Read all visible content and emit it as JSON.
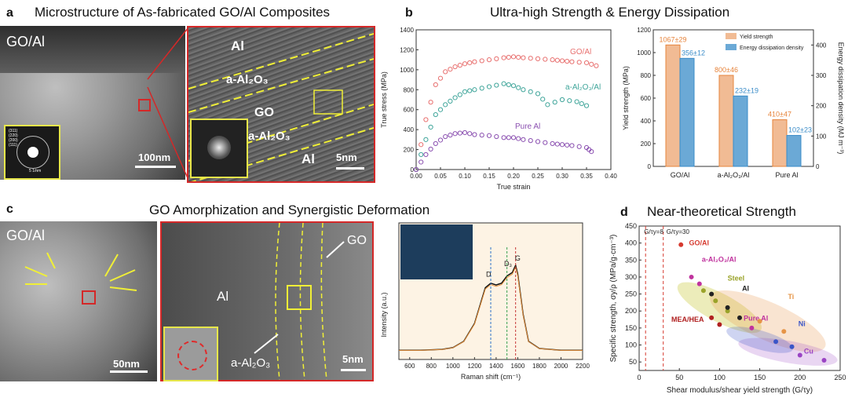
{
  "panels": {
    "a": {
      "letter": "a",
      "title": "Microstructure of As-fabricated GO/Al Composites",
      "left_label": "GO/Al",
      "scale_left": "100nm",
      "scale_right": "5nm",
      "diffraction_rings": [
        "(311)",
        "(220)",
        "(200)",
        "(111)"
      ],
      "diffraction_scale": "5 1/nm",
      "layers": [
        "Al",
        "a-Al₂O₃",
        "GO",
        "a-Al₂O₃",
        "Al"
      ]
    },
    "b": {
      "letter": "b",
      "title": "Ultra-high Strength & Energy Dissipation"
    },
    "c": {
      "letter": "c",
      "title": "GO Amorphization and Synergistic Deformation",
      "left_label": "GO/Al",
      "scale_left": "50nm",
      "scale_right": "5nm",
      "labels": {
        "al": "Al",
        "go": "GO",
        "alumina": "a-Al₂O₃"
      },
      "raman_peaks": {
        "d": "D",
        "d3": "D₃",
        "g": "G"
      }
    },
    "d": {
      "letter": "d",
      "title": "Near-theoretical Strength"
    }
  },
  "chart_data": [
    {
      "type": "scatter",
      "id": "stress-strain",
      "xlabel": "True strain",
      "ylabel": "True stress (MPa)",
      "xlim": [
        0,
        0.4
      ],
      "ylim": [
        0,
        1400
      ],
      "xticks": [
        "0.00",
        "0.05",
        "0.10",
        "0.15",
        "0.20",
        "0.25",
        "0.30",
        "0.35",
        "0.40"
      ],
      "yticks": [
        "0",
        "200",
        "400",
        "600",
        "800",
        "1000",
        "1200",
        "1400"
      ],
      "series": [
        {
          "name": "GO/Al",
          "color": "#e8706f",
          "x": [
            0,
            0.02,
            0.04,
            0.06,
            0.08,
            0.1,
            0.12,
            0.15,
            0.18,
            0.2,
            0.22,
            0.25,
            0.28,
            0.3,
            0.32,
            0.35,
            0.37
          ],
          "y": [
            0,
            500,
            850,
            980,
            1030,
            1060,
            1080,
            1100,
            1120,
            1130,
            1120,
            1110,
            1100,
            1090,
            1080,
            1070,
            1040
          ]
        },
        {
          "name": "a-Al₂O₃/Al",
          "color": "#3fa59a",
          "x": [
            0,
            0.02,
            0.04,
            0.06,
            0.08,
            0.1,
            0.12,
            0.15,
            0.18,
            0.2,
            0.22,
            0.25,
            0.27,
            0.3,
            0.33,
            0.35
          ],
          "y": [
            0,
            300,
            550,
            650,
            720,
            780,
            800,
            830,
            860,
            840,
            800,
            760,
            650,
            700,
            680,
            640
          ]
        },
        {
          "name": "Pure Al",
          "color": "#8a4fb0",
          "x": [
            0,
            0.02,
            0.04,
            0.06,
            0.08,
            0.1,
            0.12,
            0.15,
            0.18,
            0.2,
            0.22,
            0.25,
            0.28,
            0.3,
            0.32,
            0.35,
            0.36
          ],
          "y": [
            0,
            150,
            260,
            330,
            360,
            370,
            350,
            340,
            320,
            320,
            300,
            280,
            260,
            250,
            240,
            220,
            180
          ]
        }
      ]
    },
    {
      "type": "bar",
      "id": "strength-energy",
      "categories": [
        "GO/Al",
        "a-Al₂O₃/Al",
        "Pure Al"
      ],
      "ylabel": "Yield strength (MPa)",
      "ylabel2": "Energy dissipation density (MJ m⁻³)",
      "ylim": [
        0,
        1200
      ],
      "ylim2": [
        0,
        450
      ],
      "yticks": [
        "0",
        "200",
        "400",
        "600",
        "800",
        "1000",
        "1200"
      ],
      "yticks2": [
        "0",
        "100",
        "200",
        "300",
        "400"
      ],
      "series": [
        {
          "name": "Yield strength",
          "color": "#e6843c",
          "values": [
            1067,
            800,
            410
          ],
          "labels": [
            "1067±29",
            "800±46",
            "410±47"
          ]
        },
        {
          "name": "Energy dissipation density",
          "color": "#3a8cc8",
          "values": [
            356,
            232,
            102
          ],
          "labels": [
            "356±12",
            "232±19",
            "102±23"
          ]
        }
      ]
    },
    {
      "type": "line",
      "id": "raman",
      "xlabel": "Raman shift (cm⁻¹)",
      "ylabel": "Intensity (a.u.)",
      "xlim": [
        500,
        2200
      ],
      "xticks": [
        "600",
        "800",
        "1000",
        "1200",
        "1400",
        "1600",
        "1800",
        "2000",
        "2200"
      ],
      "x": [
        500,
        700,
        900,
        1000,
        1100,
        1200,
        1250,
        1300,
        1350,
        1400,
        1450,
        1500,
        1550,
        1580,
        1600,
        1650,
        1700,
        1800,
        2000,
        2200
      ],
      "y": [
        0.05,
        0.05,
        0.06,
        0.08,
        0.15,
        0.35,
        0.55,
        0.75,
        0.8,
        0.78,
        0.8,
        0.88,
        0.92,
        1.0,
        0.9,
        0.45,
        0.15,
        0.07,
        0.05,
        0.05
      ]
    },
    {
      "type": "scatter",
      "id": "ashby",
      "xlabel": "Shear modulus/shear yield strength (G/τy)",
      "ylabel": "Specific strength, σy/ρ (MPa/g·cm⁻³)",
      "xlim": [
        0,
        250
      ],
      "ylim": [
        25,
        450
      ],
      "xticks": [
        "0",
        "50",
        "100",
        "150",
        "200",
        "250"
      ],
      "yticks": [
        "50",
        "100",
        "150",
        "200",
        "250",
        "300",
        "350",
        "400",
        "450"
      ],
      "reference_lines": [
        "G/τy=8",
        "G/τy=30"
      ],
      "groups": [
        {
          "name": "GO/Al",
          "color": "#d63a2f",
          "points": [
            [
              52,
              395
            ]
          ]
        },
        {
          "name": "a-Al₂O₃/Al",
          "color": "#c0339e",
          "points": [
            [
              65,
              300
            ],
            [
              75,
              280
            ]
          ]
        },
        {
          "name": "Steel",
          "color": "#9aa32a",
          "points": [
            [
              80,
              260
            ],
            [
              95,
              230
            ],
            [
              110,
              200
            ]
          ]
        },
        {
          "name": "Al",
          "color": "#222222",
          "points": [
            [
              90,
              250
            ],
            [
              110,
              210
            ],
            [
              125,
              180
            ]
          ]
        },
        {
          "name": "Pure Al",
          "color": "#c0339e",
          "points": [
            [
              140,
              150
            ]
          ]
        },
        {
          "name": "Ti",
          "color": "#e69547",
          "points": [
            [
              150,
              170
            ],
            [
              180,
              140
            ]
          ]
        },
        {
          "name": "Ni",
          "color": "#3a55c8",
          "points": [
            [
              170,
              110
            ],
            [
              190,
              95
            ]
          ]
        },
        {
          "name": "MEA/HEA",
          "color": "#b02020",
          "points": [
            [
              90,
              180
            ],
            [
              100,
              160
            ]
          ]
        },
        {
          "name": "Cu",
          "color": "#9a44c4",
          "points": [
            [
              200,
              70
            ],
            [
              230,
              55
            ]
          ]
        }
      ]
    }
  ]
}
